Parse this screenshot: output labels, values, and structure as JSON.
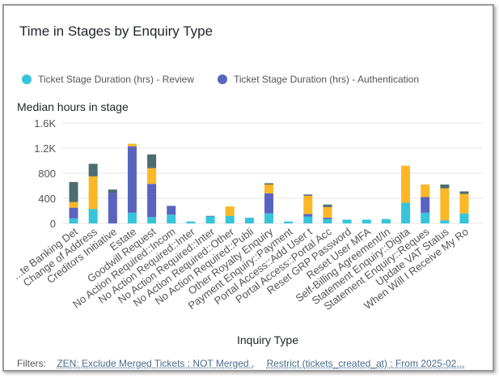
{
  "card": {
    "title": "Time in Stages by Enquiry Type"
  },
  "filters": {
    "label": "Filters:",
    "items": [
      "ZEN: Exclude Merged Tickets : NOT Merged ,",
      "Restrict (tickets_created_at) : From 2025-02..."
    ]
  },
  "colors": {
    "review": "#36c5d9",
    "authentication": "#5b63c1",
    "orange": "#fbb726",
    "slate": "#4d6c6f",
    "gridline": "#e6e6e6",
    "axis_text": "#555555"
  },
  "chart_data": {
    "type": "bar",
    "stacked": true,
    "title": "",
    "ylabel": "Median hours in stage",
    "xlabel": "Inquiry Type",
    "ylim": [
      0,
      1600
    ],
    "yticks": [
      "0",
      "400",
      "800",
      "1.2K",
      "1.6K"
    ],
    "grid": true,
    "legend_position": "top",
    "categories": [
      "...te Banking Det",
      "Change of Address",
      "Creditors Initiative",
      "Estate",
      "Goodwill Request",
      "No Action Required::Incom",
      "No Action Required::Inter",
      "No Action Required::Inter",
      "No Action Required::Other",
      "No Action Required::Publi",
      "Other Royalty Enquiry",
      "Payment Enquiry::Payment",
      "Portal Access::Add User t",
      "Portal Access::Portal Acc",
      "Reset GRP Password",
      "Reset User MFA",
      "Self-Billing Agreement/In",
      "Statement Enquiry::Digita",
      "Statement Enquiry::Reques",
      "Update VAT Status",
      "When Will I Receive My Ro"
    ],
    "series": [
      {
        "name": "Ticket Stage Duration (hrs) - Review",
        "color": "#36c5d9",
        "values": [
          80,
          230,
          0,
          170,
          100,
          140,
          30,
          110,
          120,
          90,
          160,
          30,
          110,
          70,
          60,
          60,
          70,
          330,
          170,
          50,
          160
        ]
      },
      {
        "name": "Ticket Stage Duration (hrs) - Authentication",
        "color": "#5b63c1",
        "values": [
          170,
          0,
          490,
          1060,
          530,
          140,
          0,
          10,
          0,
          0,
          320,
          0,
          40,
          20,
          0,
          0,
          0,
          0,
          250,
          0,
          0
        ]
      },
      {
        "name": "",
        "color": "#fbb726",
        "values": [
          90,
          520,
          0,
          40,
          250,
          0,
          0,
          0,
          150,
          0,
          140,
          0,
          290,
          170,
          0,
          0,
          0,
          590,
          200,
          510,
          310
        ]
      },
      {
        "name": "",
        "color": "#4d6c6f",
        "values": [
          320,
          200,
          50,
          0,
          220,
          0,
          0,
          0,
          0,
          0,
          20,
          0,
          20,
          40,
          0,
          0,
          0,
          0,
          0,
          60,
          40
        ]
      }
    ]
  }
}
